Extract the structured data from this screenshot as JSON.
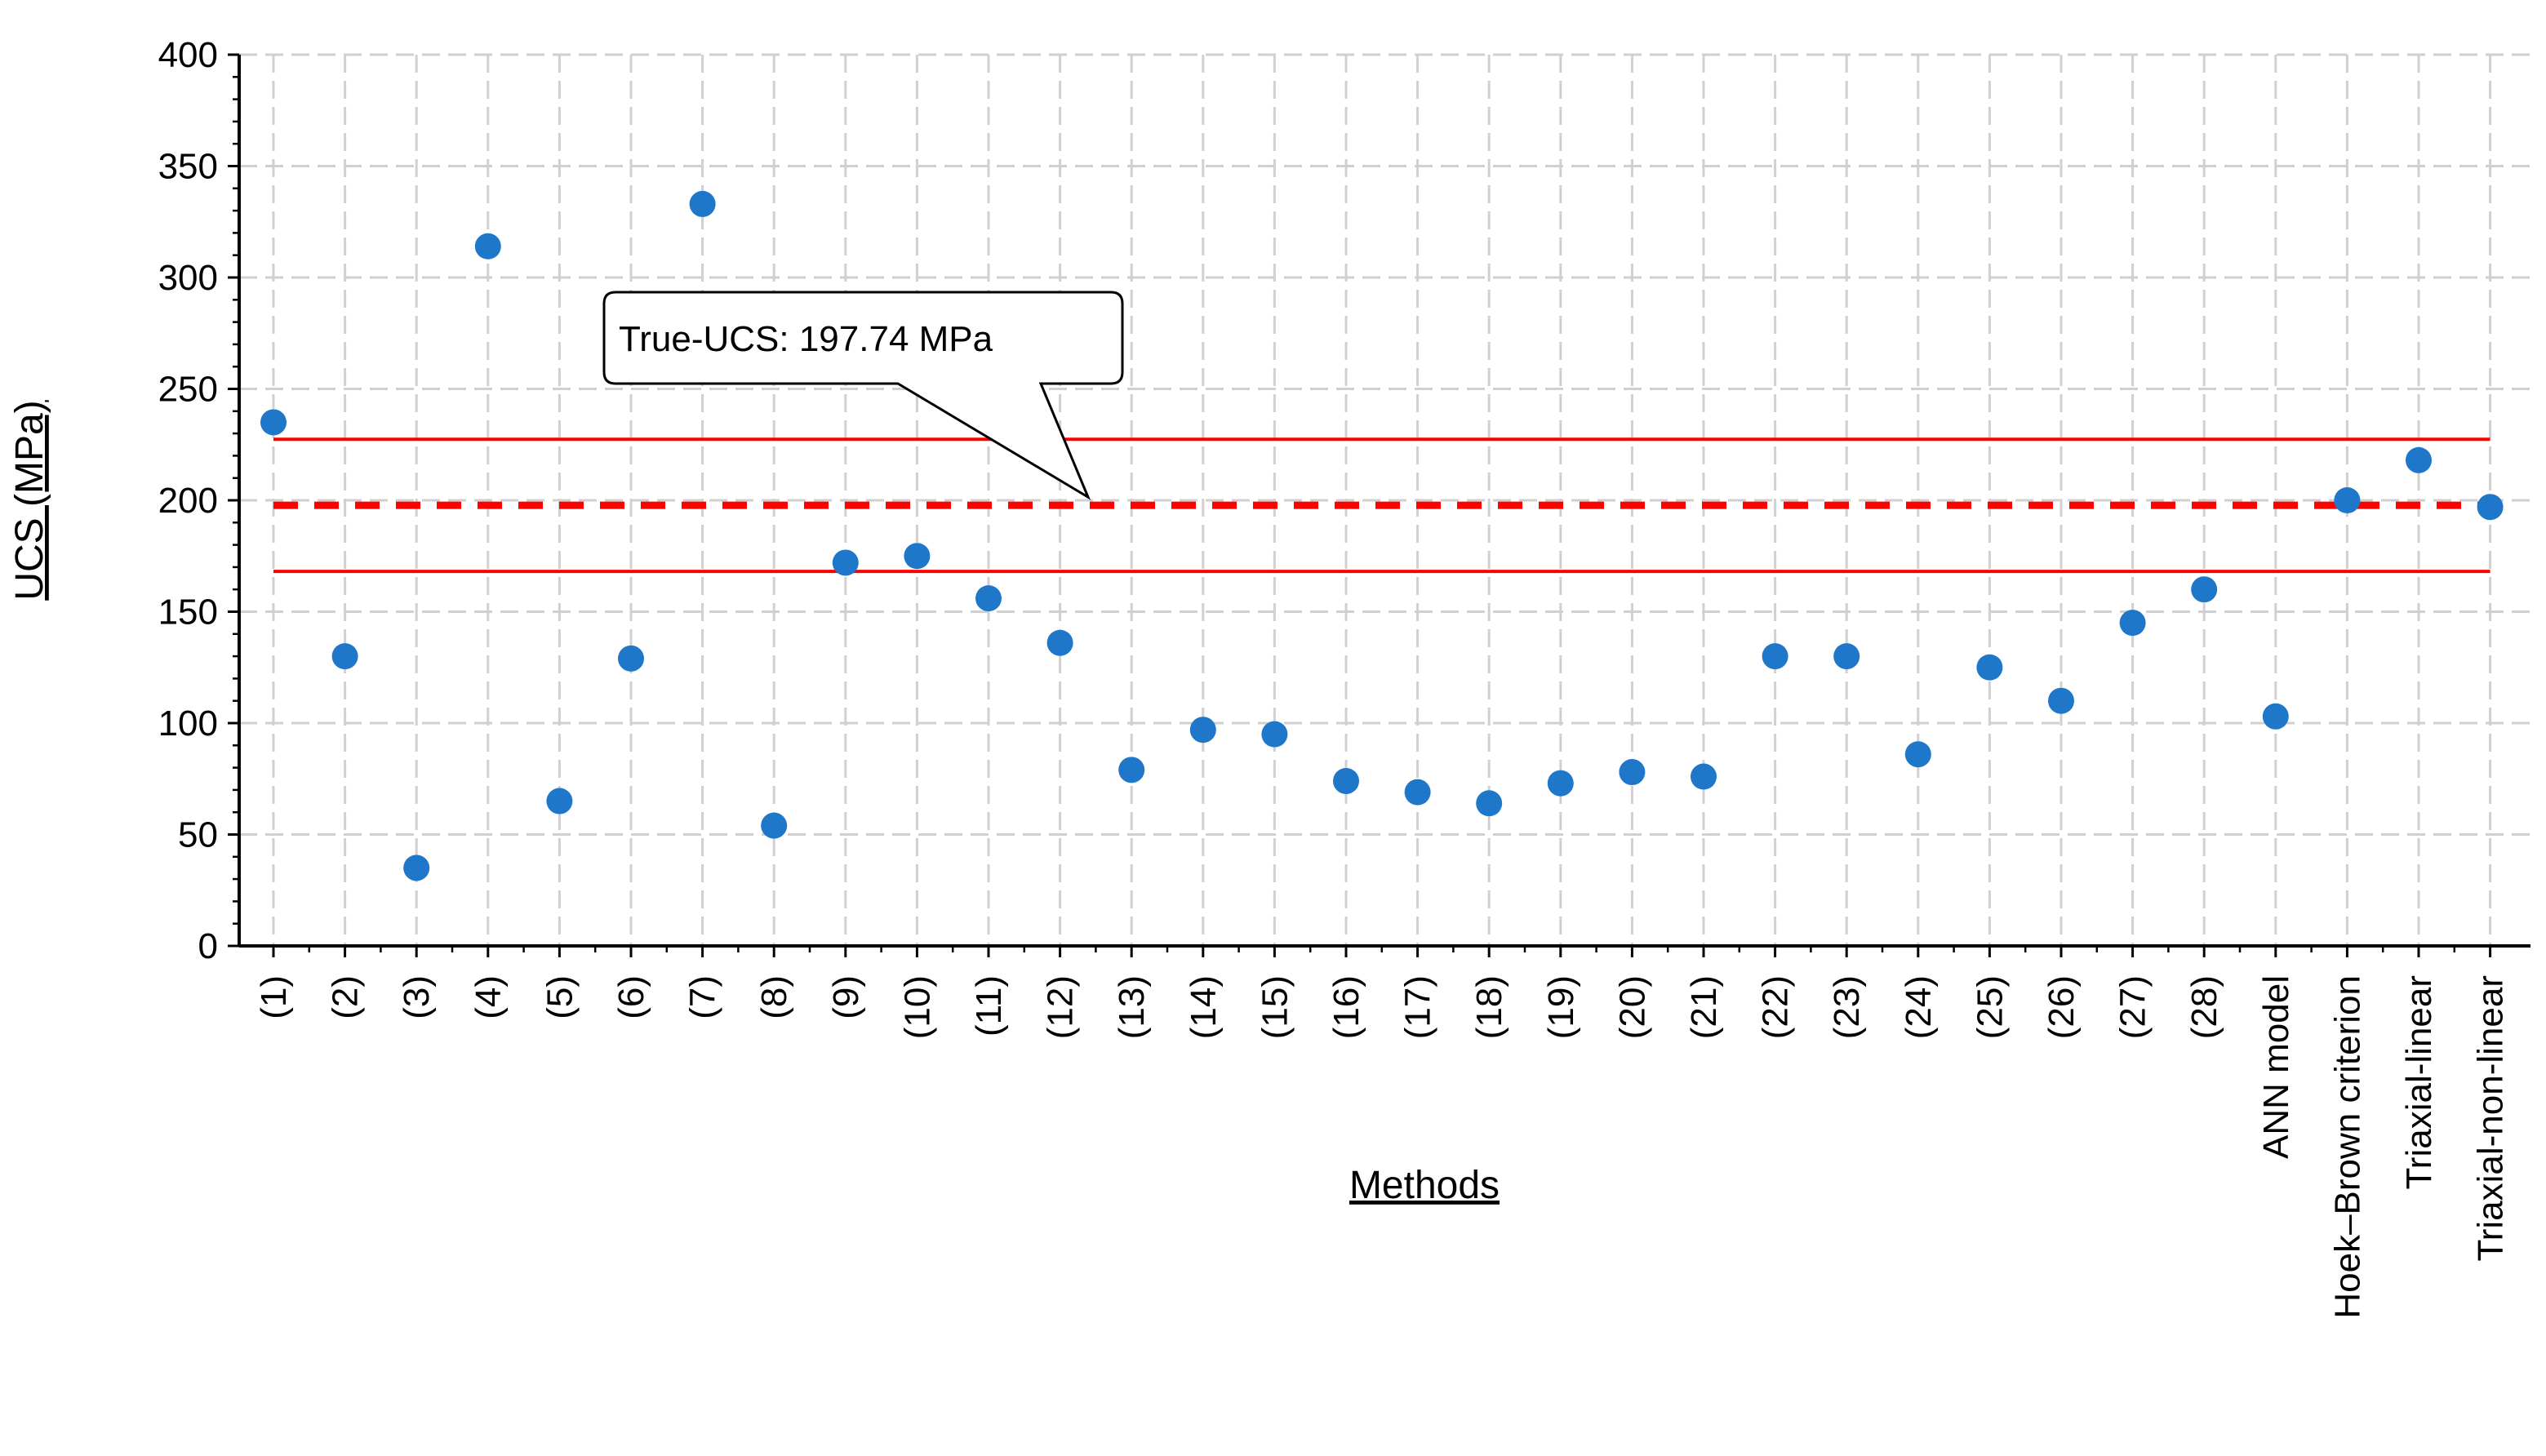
{
  "chart_data": {
    "type": "scatter",
    "title": "",
    "xlabel": "Methods",
    "ylabel": "UCS (MPa)",
    "ylim": [
      0,
      400
    ],
    "yticks": [
      0,
      50,
      100,
      150,
      200,
      250,
      300,
      350,
      400
    ],
    "grid": true,
    "marker_color": "#1f77c9",
    "categories": [
      "(1)",
      "(2)",
      "(3)",
      "(4)",
      "(5)",
      "(6)",
      "(7)",
      "(8)",
      "(9)",
      "(10)",
      "(11)",
      "(12)",
      "(13)",
      "(14)",
      "(15)",
      "(16)",
      "(17)",
      "(18)",
      "(19)",
      "(20)",
      "(21)",
      "(22)",
      "(23)",
      "(24)",
      "(25)",
      "(26)",
      "(27)",
      "(28)",
      "ANN model",
      "Hoek–Brown criterion",
      "Triaxial-linear",
      "Triaxial-non-linear"
    ],
    "values": [
      235,
      130,
      35,
      314,
      65,
      129,
      333,
      54,
      172,
      175,
      156,
      136,
      79,
      97,
      95,
      74,
      69,
      64,
      73,
      78,
      76,
      130,
      130,
      86,
      125,
      110,
      145,
      160,
      103,
      200,
      218,
      197
    ],
    "reference_lines": {
      "true_ucs": 197.74,
      "upper": 227.4,
      "lower": 168.1,
      "color": "#ff0000"
    },
    "annotation": {
      "text": "True-UCS: 197.74 MPa"
    }
  }
}
